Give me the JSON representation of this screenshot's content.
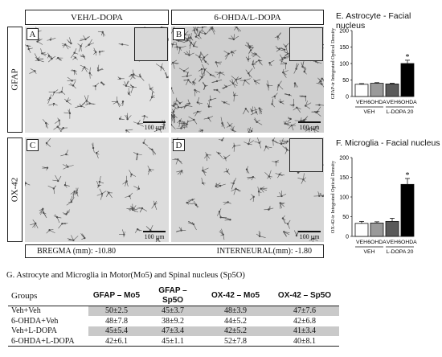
{
  "figure": {
    "col_headers": [
      "VEH/L-DOPA",
      "6-OHDA/L-DOPA"
    ],
    "row_labels": [
      "GFAP",
      "OX-42"
    ],
    "panels": [
      {
        "label": "A",
        "scale": "100 µm"
      },
      {
        "label": "B",
        "scale": "100 µm"
      },
      {
        "label": "C",
        "scale": "100 µm"
      },
      {
        "label": "D",
        "scale": "100 µm"
      }
    ],
    "bregma": "BREGMA (mm): -10.80",
    "interneural": "INTERNEURAL(mm): -1.80"
  },
  "colors": {
    "veh": "#ffffff",
    "ohda": "#9a9a9a",
    "veh_ldopa": "#5a5a5a",
    "ohda_ldopa": "#000000"
  },
  "chart_data": [
    {
      "type": "bar",
      "title": "E. Astrocyte - Facial nucleus",
      "ylabel": "GFAP-ir Integrated Optical Density",
      "ylim": [
        0,
        200
      ],
      "yticks": [
        0,
        50,
        100,
        150,
        200
      ],
      "categories": [
        "VEH",
        "6OHDA",
        "VEH",
        "6OHDA"
      ],
      "values": [
        37,
        40,
        38,
        100
      ],
      "errors": [
        2,
        2,
        2,
        10
      ],
      "significant": [
        false,
        false,
        false,
        true
      ],
      "sig_label": "*",
      "groups": [
        "VEH",
        "L-DOPA 20"
      ]
    },
    {
      "type": "bar",
      "title": "F. Microglia - Facial nucleus",
      "ylabel": "OX-42-ir Integrated Optical Density",
      "ylim": [
        0,
        200
      ],
      "yticks": [
        0,
        50,
        100,
        150,
        200
      ],
      "categories": [
        "VEH",
        "6OHDA",
        "VEH",
        "6OHDA"
      ],
      "values": [
        33,
        34,
        38,
        132
      ],
      "errors": [
        5,
        3,
        8,
        15
      ],
      "significant": [
        false,
        false,
        false,
        true
      ],
      "sig_label": "*",
      "groups": [
        "VEH",
        "L-DOPA 20"
      ]
    }
  ],
  "table": {
    "title": "G. Astrocyte and Microglia in Motor(Mo5) and Spinal nucleus (Sp5O)",
    "headers": [
      "Groups",
      "GFAP – Mo5",
      "GFAP – Sp5O",
      "OX-42 – Mo5",
      "OX-42 – Sp5O"
    ],
    "rows": [
      [
        "Veh+Veh",
        "50±2.5",
        "45±3.7",
        "48±3.9",
        "47±7.6"
      ],
      [
        "6-OHDA+Veh",
        "48±7.8",
        "38±9.2",
        "44±5.2",
        "42±6.8"
      ],
      [
        "Veh+L-DOPA",
        "45±5.4",
        "47±3.4",
        "42±5.2",
        "41±3.4"
      ],
      [
        "6-OHDA+L-DOPA",
        "42±6.1",
        "45±1.1",
        "52±7.8",
        "40±8.1"
      ]
    ]
  }
}
